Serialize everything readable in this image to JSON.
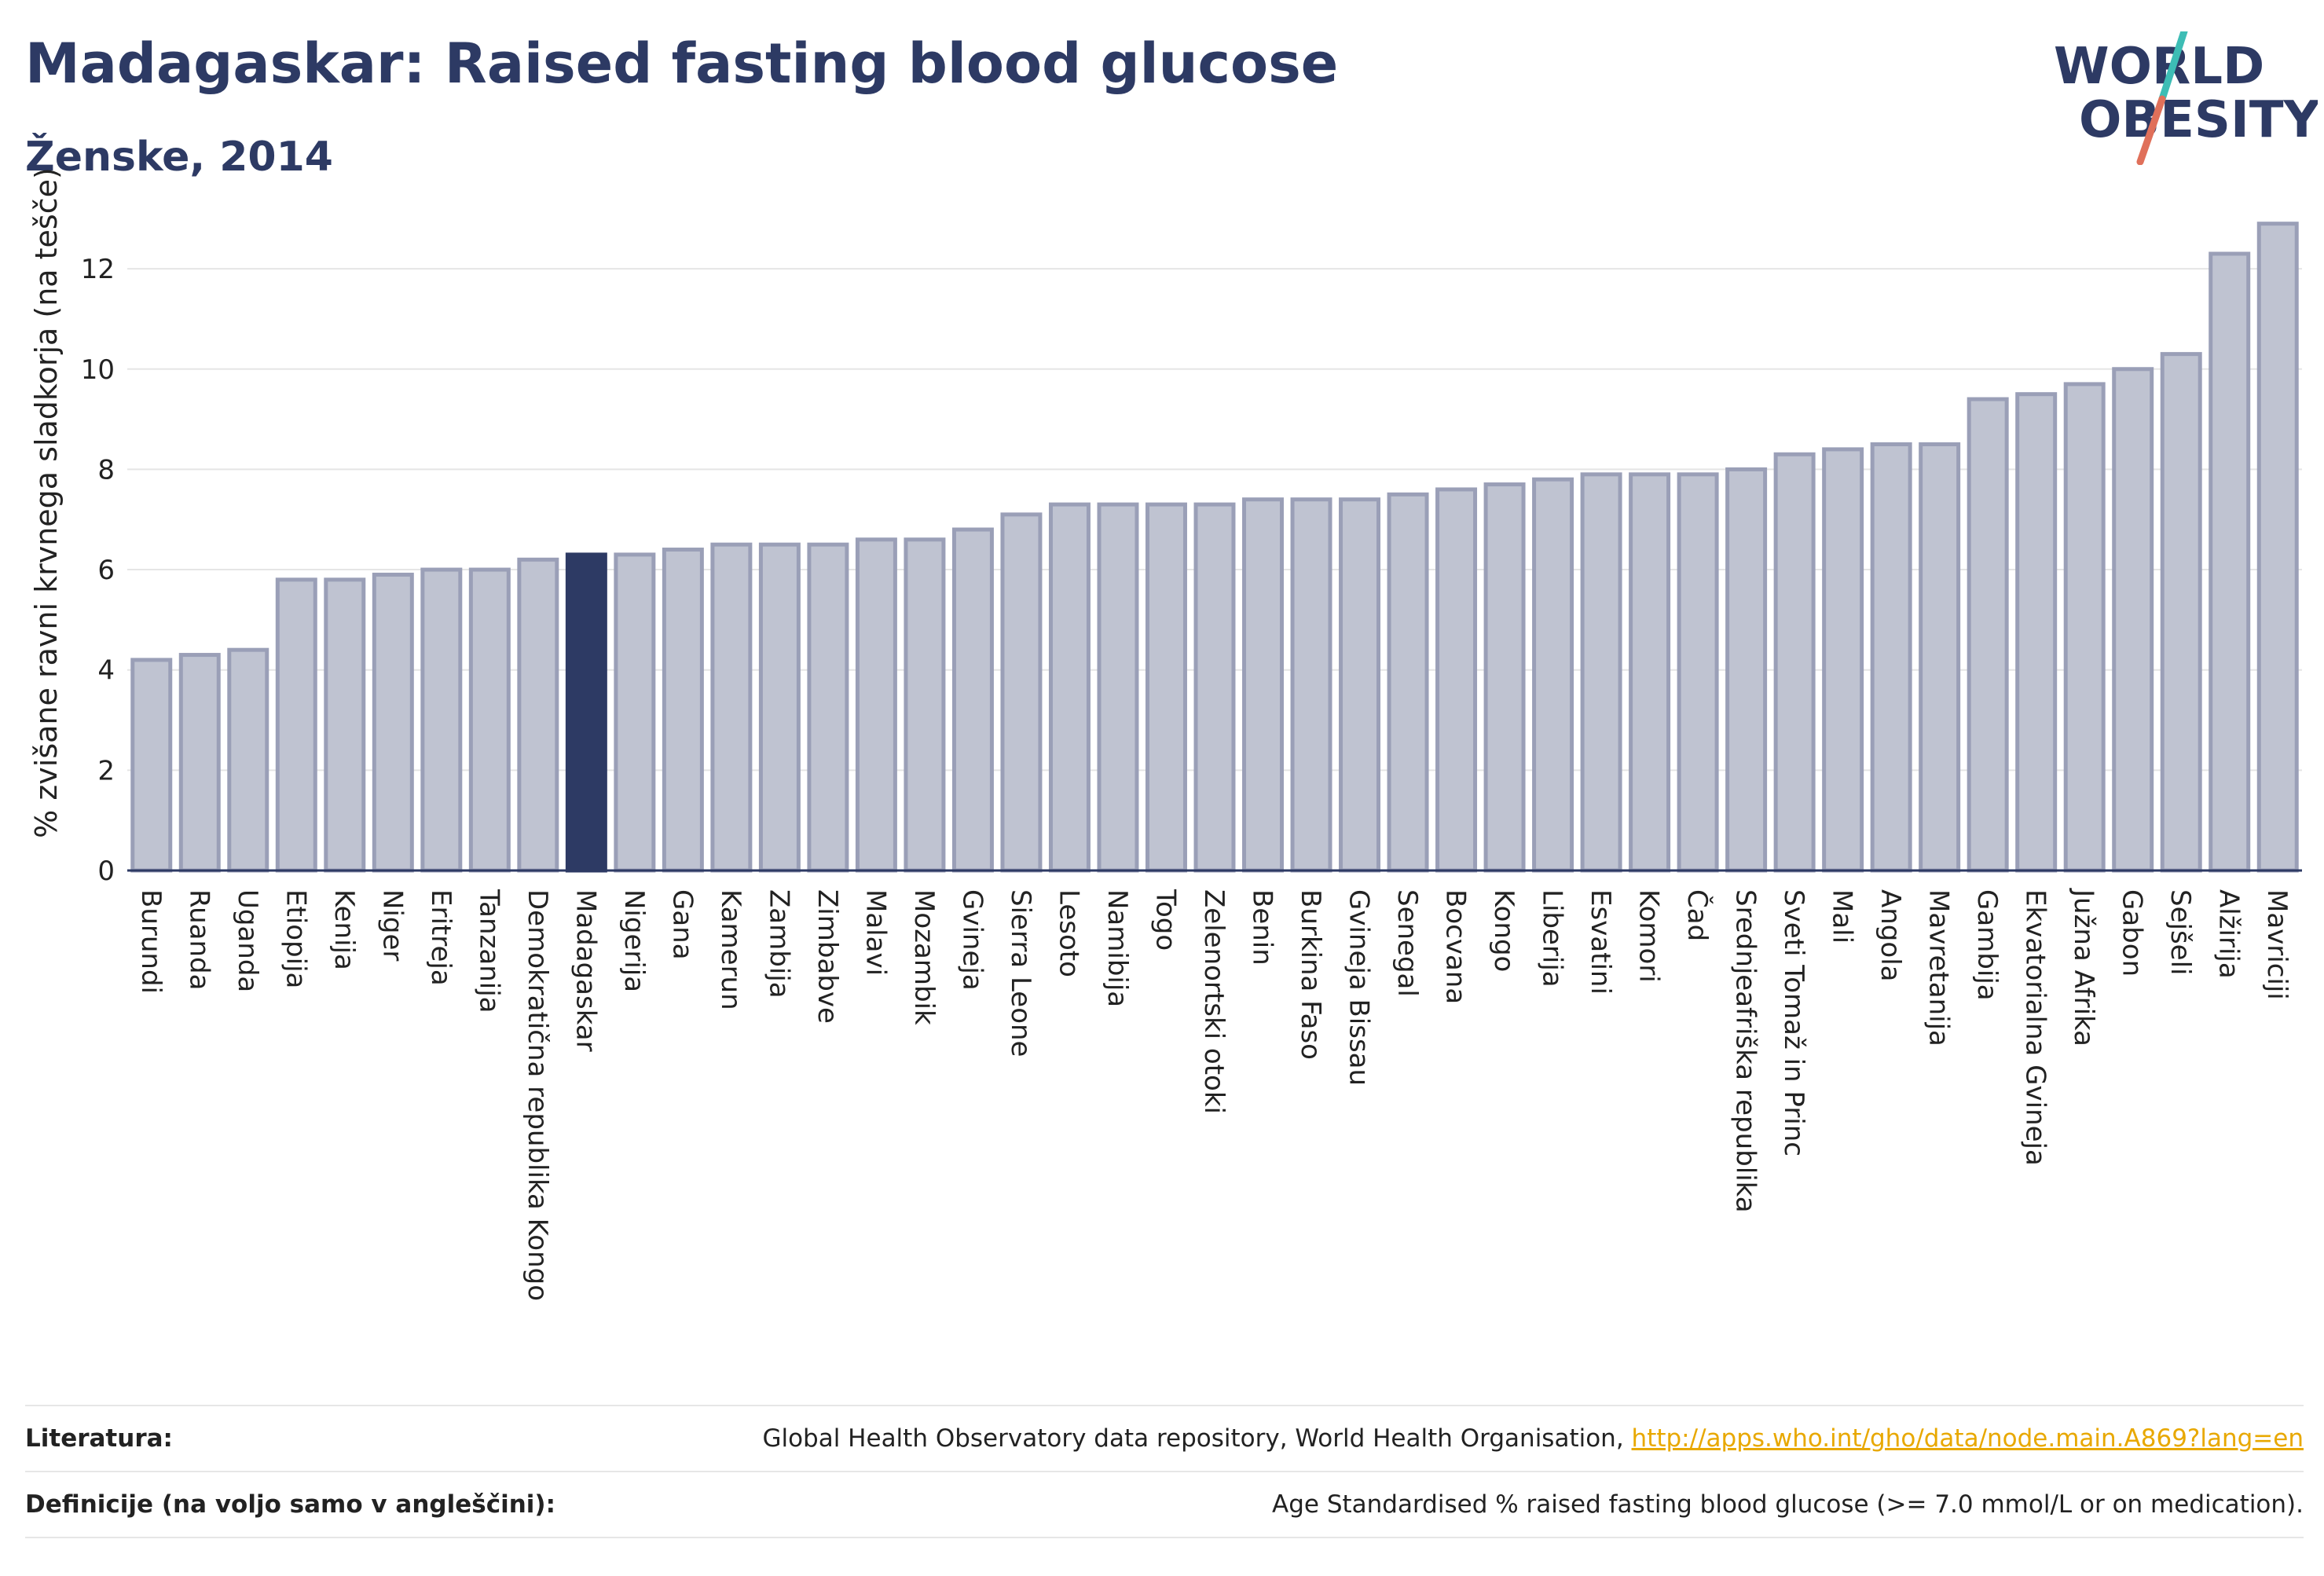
{
  "header": {
    "title": "Madagaskar: Raised fasting blood glucose",
    "subtitle": "Ženske, 2014",
    "logo_text_top": "WORLD",
    "logo_text_bottom": "OBESITY"
  },
  "colors": {
    "title": "#2d3a64",
    "bar_fill": "#bfc3d1",
    "bar_stroke": "#9a9fb7",
    "highlight_fill": "#2d3a64",
    "grid": "#e5e5e5",
    "axis": "#2d3a64",
    "logo_teal": "#3dbdb5",
    "logo_coral": "#e0705a",
    "link": "#e8a800"
  },
  "chart_data": {
    "type": "bar",
    "title": "Madagaskar: Raised fasting blood glucose",
    "subtitle": "Ženske, 2014",
    "ylabel": "% zvišane ravni krvnega sladkorja (na tešče)",
    "xlabel": "",
    "ylim": [
      0,
      13.6
    ],
    "yticks": [
      0,
      2,
      4,
      6,
      8,
      10,
      12
    ],
    "grid": true,
    "highlight": "Madagaskar",
    "categories": [
      "Burundi",
      "Ruanda",
      "Uganda",
      "Etiopija",
      "Kenija",
      "Niger",
      "Eritreja",
      "Tanzanija",
      "Demokratična republika Kongo",
      "Madagaskar",
      "Nigerija",
      "Gana",
      "Kamerun",
      "Zambija",
      "Zimbabve",
      "Malavi",
      "Mozambik",
      "Gvineja",
      "Sierra Leone",
      "Lesoto",
      "Namibija",
      "Togo",
      "Zelenortski otoki",
      "Benin",
      "Burkina Faso",
      "Gvineja Bissau",
      "Senegal",
      "Bocvana",
      "Kongo",
      "Liberija",
      "Esvatini",
      "Komori",
      "Čad",
      "Srednjeafriška republika",
      "Sveti Tomaž in Princ",
      "Mali",
      "Angola",
      "Mavretanija",
      "Gambija",
      "Ekvatorialna Gvineja",
      "Južna Afrika",
      "Gabon",
      "Sejšeli",
      "Alžirija",
      "Mavriciji"
    ],
    "values": [
      4.2,
      4.3,
      4.4,
      5.8,
      5.8,
      5.9,
      6.0,
      6.0,
      6.2,
      6.3,
      6.3,
      6.4,
      6.5,
      6.5,
      6.5,
      6.6,
      6.6,
      6.8,
      7.1,
      7.3,
      7.3,
      7.3,
      7.3,
      7.4,
      7.4,
      7.4,
      7.5,
      7.6,
      7.7,
      7.8,
      7.9,
      7.9,
      7.9,
      8.0,
      8.3,
      8.4,
      8.5,
      8.5,
      9.4,
      9.5,
      9.7,
      10.0,
      10.3,
      12.3,
      12.9
    ]
  },
  "footer": {
    "source_label": "Literatura:",
    "source_text": "Global Health Observatory data repository, World Health Organisation, ",
    "source_link": "http://apps.who.int/gho/data/node.main.A869?lang=en",
    "definition_label": "Definicije (na voljo samo v angleščini):",
    "definition_text": "Age Standardised % raised fasting blood glucose (>= 7.0 mmol/L or on medication)."
  }
}
